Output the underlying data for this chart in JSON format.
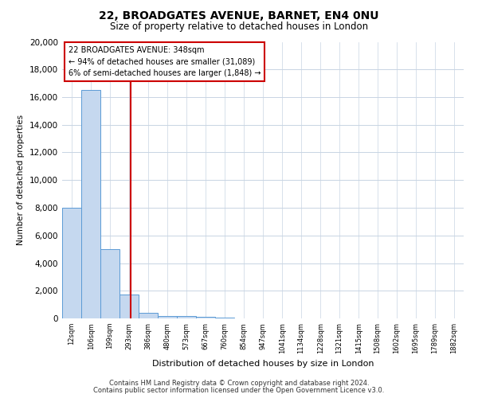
{
  "title": "22, BROADGATES AVENUE, BARNET, EN4 0NU",
  "subtitle": "Size of property relative to detached houses in London",
  "xlabel": "Distribution of detached houses by size in London",
  "ylabel": "Number of detached properties",
  "footer_line1": "Contains HM Land Registry data © Crown copyright and database right 2024.",
  "footer_line2": "Contains public sector information licensed under the Open Government Licence v3.0.",
  "annotation_line1": "22 BROADGATES AVENUE: 348sqm",
  "annotation_line2": "← 94% of detached houses are smaller (31,089)",
  "annotation_line3": "6% of semi-detached houses are larger (1,848) →",
  "property_size": 348,
  "categories": [
    "12sqm",
    "106sqm",
    "199sqm",
    "293sqm",
    "386sqm",
    "480sqm",
    "573sqm",
    "667sqm",
    "760sqm",
    "854sqm",
    "947sqm",
    "1041sqm",
    "1134sqm",
    "1228sqm",
    "1321sqm",
    "1415sqm",
    "1508sqm",
    "1602sqm",
    "1695sqm",
    "1789sqm",
    "1882sqm"
  ],
  "bin_starts": [
    12,
    106,
    199,
    293,
    386,
    480,
    573,
    667,
    760,
    854,
    947,
    1041,
    1134,
    1228,
    1321,
    1415,
    1508,
    1602,
    1695,
    1789,
    1882
  ],
  "bin_width": 94,
  "values": [
    8000,
    16500,
    5000,
    1700,
    400,
    200,
    150,
    100,
    50,
    10,
    5,
    3,
    2,
    1,
    1,
    1,
    1,
    1,
    0,
    0,
    0
  ],
  "bar_fill_color": "#c5d8ef",
  "bar_edge_color": "#5b9bd5",
  "grid_color": "#c8d4e3",
  "red_line_color": "#cc0000",
  "annotation_edge_color": "#cc0000",
  "background_color": "#ffffff",
  "ylim_max": 20000,
  "yticks": [
    0,
    2000,
    4000,
    6000,
    8000,
    10000,
    12000,
    14000,
    16000,
    18000,
    20000
  ],
  "title_fontsize": 10,
  "subtitle_fontsize": 8.5,
  "ylabel_fontsize": 7.5,
  "xlabel_fontsize": 8,
  "ytick_fontsize": 7.5,
  "xtick_fontsize": 6,
  "annotation_fontsize": 7,
  "footer_fontsize": 6
}
